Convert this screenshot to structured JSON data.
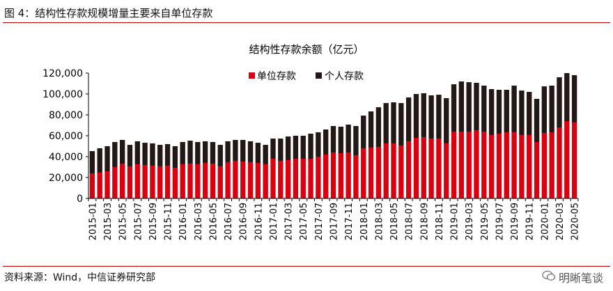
{
  "figure_title": "图 4：结构性存款规模增量主要来自单位存款",
  "source": "资料来源：Wind，中信证券研究部",
  "watermark": "明晰笔谈",
  "chart_data": {
    "type": "bar",
    "stacked": true,
    "title": "结构性存款余额（亿元）",
    "xlabel": "",
    "ylabel": "",
    "ylim": [
      0,
      120000
    ],
    "yticks": [
      0,
      20000,
      40000,
      60000,
      80000,
      100000,
      120000
    ],
    "ytick_labels": [
      "0",
      "20,000",
      "40,000",
      "60,000",
      "80,000",
      "100,000",
      "120,000"
    ],
    "legend_position": "top-center",
    "grid": false,
    "categories": [
      "2015-01",
      "2015-02",
      "2015-03",
      "2015-04",
      "2015-05",
      "2015-06",
      "2015-07",
      "2015-08",
      "2015-09",
      "2015-10",
      "2015-11",
      "2015-12",
      "2016-01",
      "2016-02",
      "2016-03",
      "2016-04",
      "2016-05",
      "2016-06",
      "2016-07",
      "2016-08",
      "2016-09",
      "2016-10",
      "2016-11",
      "2016-12",
      "2017-01",
      "2017-02",
      "2017-03",
      "2017-04",
      "2017-05",
      "2017-06",
      "2017-07",
      "2017-08",
      "2017-09",
      "2017-10",
      "2017-11",
      "2017-12",
      "2018-01",
      "2018-02",
      "2018-03",
      "2018-04",
      "2018-05",
      "2018-06",
      "2018-07",
      "2018-08",
      "2018-09",
      "2018-10",
      "2018-11",
      "2018-12",
      "2019-01",
      "2019-02",
      "2019-03",
      "2019-04",
      "2019-05",
      "2019-06",
      "2019-07",
      "2019-08",
      "2019-09",
      "2019-10",
      "2019-11",
      "2019-12",
      "2020-01",
      "2020-02",
      "2020-03",
      "2020-04",
      "2020-05"
    ],
    "series": [
      {
        "name": "单位存款",
        "color": "#d9000f",
        "values": [
          24000,
          24700,
          26000,
          30000,
          33300,
          30700,
          32700,
          32000,
          31300,
          30700,
          31300,
          29300,
          32700,
          33300,
          32700,
          34000,
          33300,
          30700,
          34700,
          36000,
          35300,
          34700,
          34000,
          32700,
          38000,
          36000,
          36700,
          38000,
          38000,
          38000,
          40000,
          42000,
          44000,
          43300,
          44000,
          41300,
          48000,
          48700,
          49300,
          52700,
          52700,
          50700,
          54700,
          58000,
          58700,
          57300,
          57300,
          52700,
          64000,
          64000,
          64000,
          65300,
          64000,
          60700,
          62000,
          63300,
          63300,
          60700,
          60700,
          54000,
          62700,
          63300,
          68000,
          74000,
          72700
        ]
      },
      {
        "name": "个人存款",
        "color": "#231815",
        "values": [
          21300,
          23300,
          24000,
          24000,
          22700,
          20600,
          22000,
          21300,
          21400,
          20600,
          20700,
          20700,
          21300,
          22000,
          21300,
          20700,
          20700,
          20600,
          20000,
          20000,
          20700,
          20000,
          19300,
          18600,
          19300,
          21300,
          22600,
          22000,
          22000,
          24000,
          23300,
          24000,
          25300,
          25400,
          26700,
          28000,
          31300,
          34600,
          38000,
          38600,
          39300,
          40600,
          42000,
          42000,
          42000,
          41400,
          42000,
          43300,
          45300,
          48000,
          47300,
          45400,
          44000,
          44000,
          42000,
          40700,
          44700,
          42600,
          41300,
          41300,
          44600,
          44700,
          48000,
          46000,
          45300
        ]
      }
    ]
  }
}
